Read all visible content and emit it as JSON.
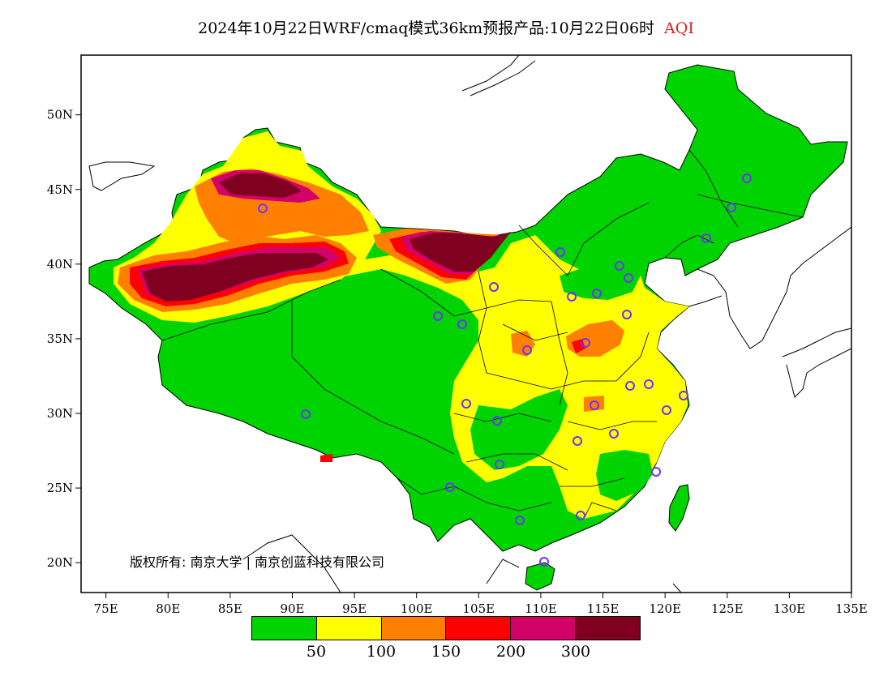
{
  "title": {
    "main": "2024年10月22日WRF/cmaq模式36km预报产品:10月22日06时",
    "variable": "AQI",
    "variable_color": "#e0201e"
  },
  "axes": {
    "x_ticks": [
      "75E",
      "80E",
      "85E",
      "90E",
      "95E",
      "100E",
      "105E",
      "110E",
      "115E",
      "120E",
      "125E",
      "130E",
      "135E"
    ],
    "y_ticks": [
      "50N",
      "45N",
      "40N",
      "35N",
      "30N",
      "25N",
      "20N"
    ],
    "lon_range": [
      73,
      135
    ],
    "lat_range": [
      18,
      54
    ]
  },
  "copyright": "版权所有: 南京大学 | 南京创蓝科技有限公司",
  "legend": {
    "colors": [
      "#00d400",
      "#ffff00",
      "#ff8000",
      "#ff0000",
      "#d4006a",
      "#800020"
    ],
    "labels": [
      "50",
      "100",
      "150",
      "200",
      "300"
    ]
  },
  "station_marker_color": "#7030ff"
}
